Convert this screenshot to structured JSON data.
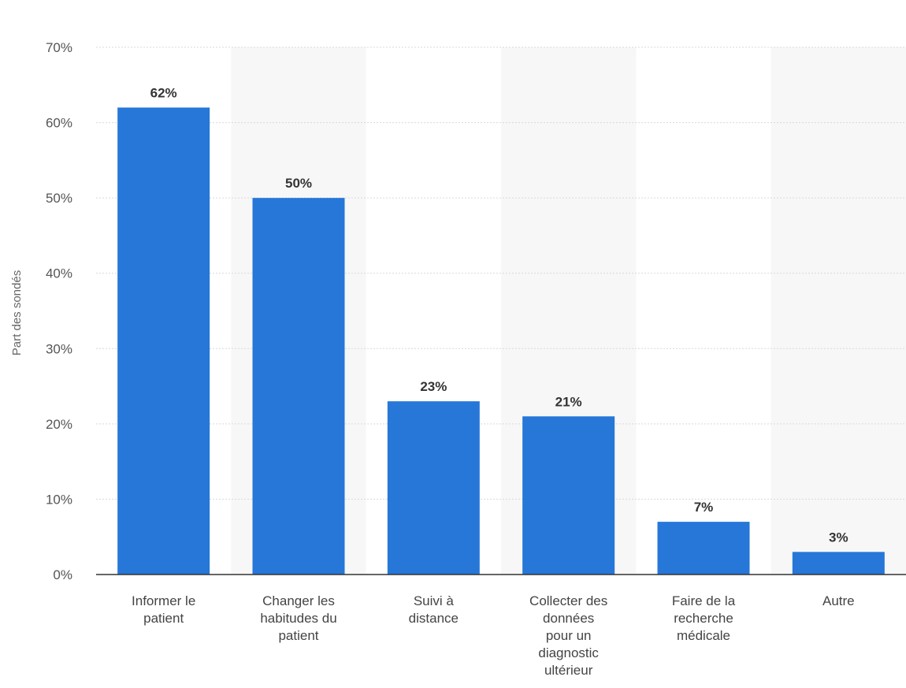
{
  "chart_data": {
    "type": "bar",
    "title": "",
    "xlabel": "",
    "ylabel": "Part des sondés",
    "categories": [
      [
        "Informer le",
        "patient"
      ],
      [
        "Changer les",
        "habitudes du",
        "patient"
      ],
      [
        "Suivi à",
        "distance"
      ],
      [
        "Collecter des",
        "données",
        "pour un",
        "diagnostic",
        "ultérieur"
      ],
      [
        "Faire de la",
        "recherche",
        "médicale"
      ],
      [
        "Autre"
      ]
    ],
    "values": [
      62,
      50,
      23,
      21,
      7,
      3
    ],
    "value_labels": [
      "62%",
      "50%",
      "23%",
      "21%",
      "7%",
      "3%"
    ],
    "ylim": [
      0,
      70
    ],
    "yticks": [
      0,
      10,
      20,
      30,
      40,
      50,
      60,
      70
    ],
    "ytick_labels": [
      "0%",
      "10%",
      "20%",
      "30%",
      "40%",
      "50%",
      "60%",
      "70%"
    ],
    "grid": true,
    "bar_color": "#2677d8",
    "band_color": "#f7f7f7"
  }
}
